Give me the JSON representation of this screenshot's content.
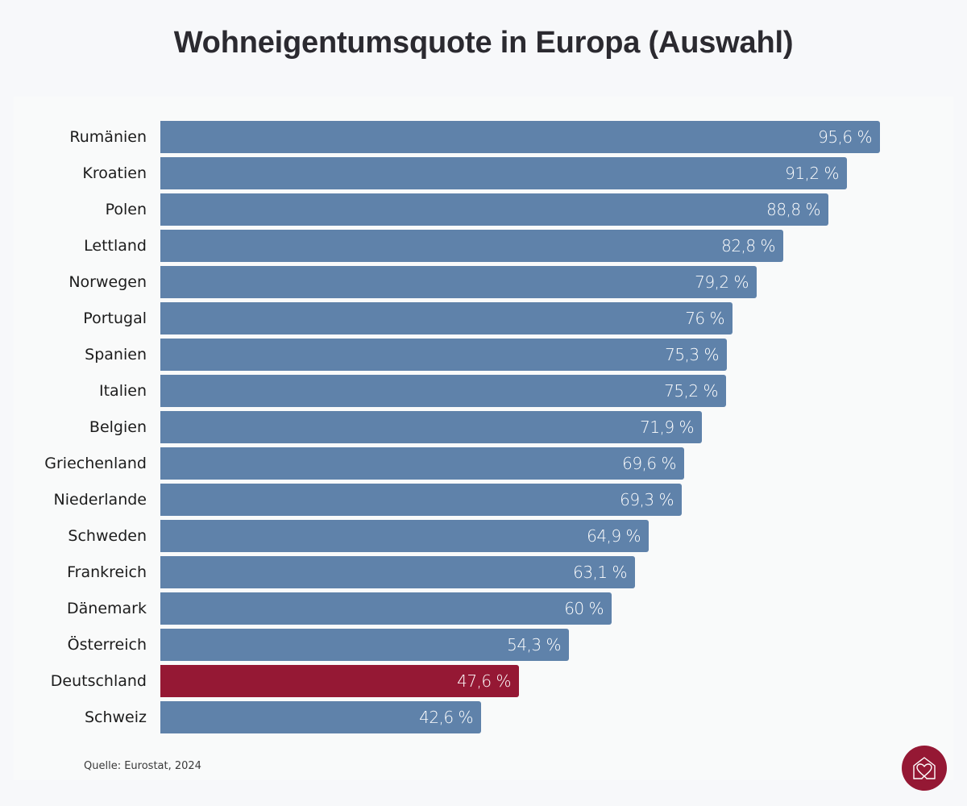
{
  "title": "Wohneigentumsquote in Europa (Auswahl)",
  "source": "Quelle: Eurostat, 2024",
  "colors": {
    "background": "#f7f8fa",
    "bar_default": "#5f82aa",
    "bar_highlight": "#951834",
    "title": "#2b2a30",
    "logo": "#951834"
  },
  "logo": {
    "icon": "house-heart-icon"
  },
  "rows": [
    {
      "label": "Rumänien",
      "value": 95.6,
      "display": "95,6 %",
      "highlight": false
    },
    {
      "label": "Kroatien",
      "value": 91.2,
      "display": "91,2 %",
      "highlight": false
    },
    {
      "label": "Polen",
      "value": 88.8,
      "display": "88,8 %",
      "highlight": false
    },
    {
      "label": "Lettland",
      "value": 82.8,
      "display": "82,8 %",
      "highlight": false
    },
    {
      "label": "Norwegen",
      "value": 79.2,
      "display": "79,2 %",
      "highlight": false
    },
    {
      "label": "Portugal",
      "value": 76,
      "display": "76 %",
      "highlight": false
    },
    {
      "label": "Spanien",
      "value": 75.3,
      "display": "75,3 %",
      "highlight": false
    },
    {
      "label": "Italien",
      "value": 75.2,
      "display": "75,2 %",
      "highlight": false
    },
    {
      "label": "Belgien",
      "value": 71.9,
      "display": "71,9 %",
      "highlight": false
    },
    {
      "label": "Griechenland",
      "value": 69.6,
      "display": "69,6 %",
      "highlight": false
    },
    {
      "label": "Niederlande",
      "value": 69.3,
      "display": "69,3 %",
      "highlight": false
    },
    {
      "label": "Schweden",
      "value": 64.9,
      "display": "64,9 %",
      "highlight": false
    },
    {
      "label": "Frankreich",
      "value": 63.1,
      "display": "63,1 %",
      "highlight": false
    },
    {
      "label": "Dänemark",
      "value": 60,
      "display": "60 %",
      "highlight": false
    },
    {
      "label": "Österreich",
      "value": 54.3,
      "display": "54,3 %",
      "highlight": false
    },
    {
      "label": "Deutschland",
      "value": 47.6,
      "display": "47,6 %",
      "highlight": true
    },
    {
      "label": "Schweiz",
      "value": 42.6,
      "display": "42,6 %",
      "highlight": false
    }
  ],
  "chart_data": {
    "type": "bar",
    "orientation": "horizontal",
    "title": "Wohneigentumsquote in Europa (Auswahl)",
    "xlabel": "",
    "ylabel": "",
    "unit": "%",
    "categories": [
      "Rumänien",
      "Kroatien",
      "Polen",
      "Lettland",
      "Norwegen",
      "Portugal",
      "Spanien",
      "Italien",
      "Belgien",
      "Griechenland",
      "Niederlande",
      "Schweden",
      "Frankreich",
      "Dänemark",
      "Österreich",
      "Deutschland",
      "Schweiz"
    ],
    "values": [
      95.6,
      91.2,
      88.8,
      82.8,
      79.2,
      76,
      75.3,
      75.2,
      71.9,
      69.6,
      69.3,
      64.9,
      63.1,
      60,
      54.3,
      47.6,
      42.6
    ],
    "highlighted_category": "Deutschland",
    "data_labels": true,
    "grid": false,
    "legend": null,
    "xlim": [
      0,
      100
    ],
    "annotations": [
      "Quelle: Eurostat, 2024"
    ]
  }
}
